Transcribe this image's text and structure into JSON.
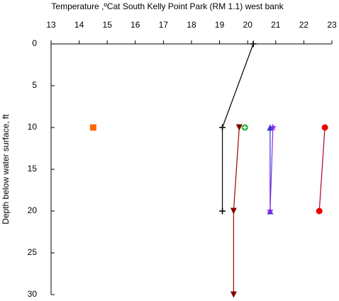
{
  "chart_data": {
    "type": "scatter",
    "title": "Temperature ,ºCat South Kelly Point Park (RM 1.1) west bank",
    "y_label": "Depth below water surface, ft",
    "xlim": [
      13,
      23
    ],
    "xticks": [
      13,
      14,
      15,
      16,
      17,
      18,
      19,
      20,
      21,
      22,
      23
    ],
    "ylim": [
      0,
      30
    ],
    "yticks": [
      0,
      5,
      10,
      15,
      20,
      25,
      30
    ],
    "y_inverted": true,
    "x_axis_position": "top",
    "series": [
      {
        "color": "#000000",
        "line_color": "#000000",
        "marker": "plus",
        "x": [
          20.2,
          19.1,
          19.1
        ],
        "values": [
          0,
          10,
          20
        ]
      },
      {
        "color": "#800000",
        "line_color": "#a00000",
        "marker": "triangle-down",
        "x": [
          19.7,
          19.5,
          19.5
        ],
        "values": [
          10,
          20,
          30
        ]
      },
      {
        "color": "#22aa22",
        "line_color": "#22aa22",
        "marker": "circle-plus",
        "x": [
          19.9
        ],
        "values": [
          10
        ]
      },
      {
        "color": "#3333dd",
        "line_color": "#3333dd",
        "marker": "triangle-up",
        "x": [
          20.8,
          20.8
        ],
        "values": [
          10,
          20
        ]
      },
      {
        "color": "#8a2be2",
        "line_color": "#8a2be2",
        "marker": "star",
        "x": [
          20.9,
          20.8
        ],
        "values": [
          10,
          20
        ]
      },
      {
        "color": "#ee0000",
        "line_color": "#b00020",
        "marker": "circle",
        "x": [
          22.75,
          22.55
        ],
        "values": [
          10,
          20
        ]
      },
      {
        "color": "#ff6600",
        "line_color": "#ff6600",
        "marker": "square",
        "x": [
          14.5
        ],
        "values": [
          10
        ]
      }
    ]
  }
}
